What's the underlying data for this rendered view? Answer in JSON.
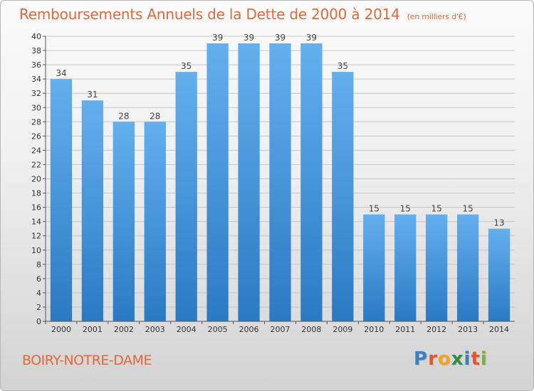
{
  "title": "Remboursements Annuels de la Dette de 2000 à 2014",
  "unit_note": "(en milliers d'€)",
  "commune": "BOIRY-NOTRE-DAME",
  "logo": {
    "text": "Proxiti",
    "letters": [
      {
        "ch": "P",
        "color": "#3d7fc4"
      },
      {
        "ch": "r",
        "color": "#e8542e"
      },
      {
        "ch": "o",
        "color": "#f2a31b"
      },
      {
        "ch": "x",
        "color": "#2f8f3e"
      },
      {
        "ch": "i",
        "color": "#3d7fc4"
      },
      {
        "ch": "t",
        "color": "#e8542e"
      },
      {
        "ch": "i",
        "color": "#7bb33a"
      }
    ]
  },
  "colors": {
    "title": "#e2683a",
    "bar_light": "#63b0ee",
    "bar_dark": "#2a7ac4",
    "grid": "#c8c8c8",
    "axis": "#555555"
  },
  "chart_data": {
    "type": "bar",
    "categories": [
      "2000",
      "2001",
      "2002",
      "2003",
      "2004",
      "2005",
      "2006",
      "2007",
      "2008",
      "2009",
      "2010",
      "2011",
      "2012",
      "2013",
      "2014"
    ],
    "values": [
      34,
      31,
      28,
      28,
      35,
      39,
      39,
      39,
      39,
      35,
      15,
      15,
      15,
      15,
      13
    ],
    "ylim": [
      0,
      40
    ],
    "ytick_step": 2,
    "grid": true,
    "data_labels": true
  }
}
